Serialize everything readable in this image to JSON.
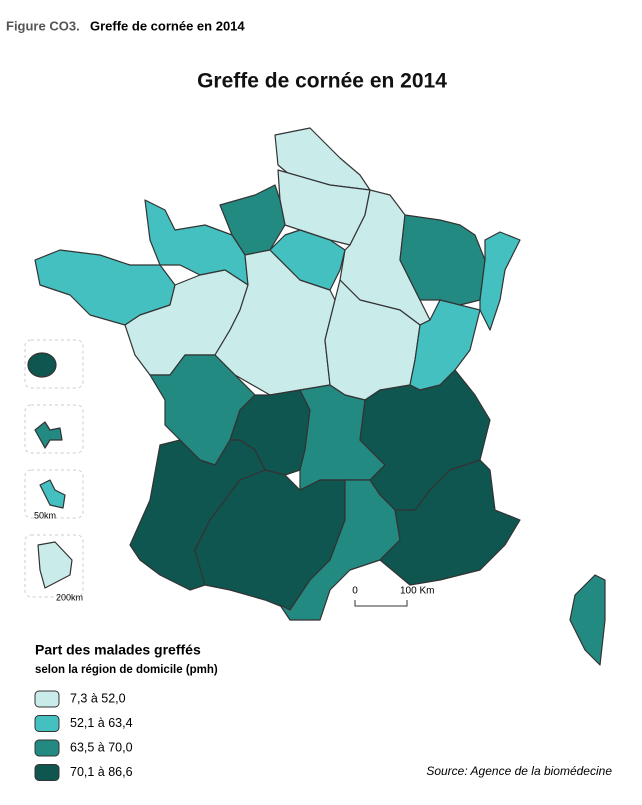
{
  "figure_label": "Figure CO3.",
  "figure_title": "Greffe de cornée en 2014",
  "map": {
    "title": "Greffe de cornée en 2014",
    "scale": {
      "start": "0",
      "end": "100 Km"
    },
    "inset_scales": [
      "50km",
      "200km"
    ]
  },
  "legend": {
    "title": "Part des malades greffés",
    "subtitle": "selon la région de domicile (pmh)",
    "items": [
      {
        "label": "7,3 à 52,0",
        "color": "#c9ebe9"
      },
      {
        "label": "52,1 à 63,4",
        "color": "#45c0c0"
      },
      {
        "label": "63,5 à 70,0",
        "color": "#238a82"
      },
      {
        "label": "70,1 à 86,6",
        "color": "#0f5550"
      }
    ]
  },
  "source": "Source: Agence de la biomédecine"
}
